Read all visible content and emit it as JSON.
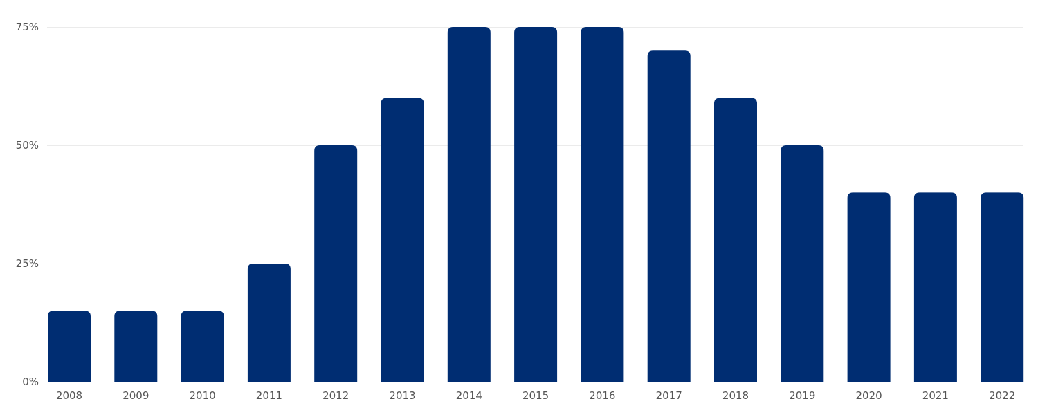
{
  "chart_data": {
    "type": "bar",
    "categories": [
      "2008",
      "2009",
      "2010",
      "2011",
      "2012",
      "2013",
      "2014",
      "2015",
      "2016",
      "2017",
      "2018",
      "2019",
      "2020",
      "2021",
      "2022"
    ],
    "values": [
      15,
      15,
      15,
      25,
      50,
      60,
      75,
      75,
      75,
      70,
      60,
      50,
      40,
      40,
      40
    ],
    "title": "",
    "xlabel": "",
    "ylabel": "",
    "ylim": [
      0,
      75
    ],
    "yticks": [
      0,
      25,
      50,
      75
    ],
    "ytick_labels": [
      "0%",
      "25%",
      "50%",
      "75%"
    ],
    "grid": true,
    "legend": "none",
    "bar_color": "#002d72"
  }
}
